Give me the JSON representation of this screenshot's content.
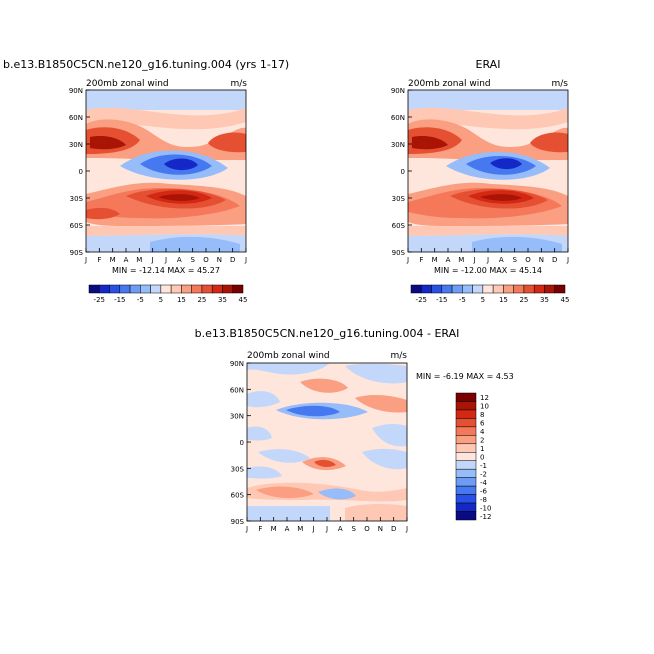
{
  "chart_data": [
    {
      "type": "heatmap",
      "title": "b.e13.B1850C5CN.ne120_g16.tuning.004 (yrs 1-17)",
      "subtitle_left": "200mb zonal wind",
      "subtitle_right": "m/s",
      "xlabel": "",
      "ylabel": "",
      "x_ticks": [
        "J",
        "F",
        "M",
        "A",
        "M",
        "J",
        "J",
        "A",
        "S",
        "O",
        "N",
        "D",
        "J"
      ],
      "y_ticks": [
        "90N",
        "60N",
        "30N",
        "0",
        "30S",
        "60S",
        "90S"
      ],
      "ylim": [
        -90,
        90
      ],
      "stats": "MIN = -12.14  MAX =  45.27",
      "colorbar_ticks": [
        "-25",
        "-15",
        "-5",
        "5",
        "15",
        "25",
        "35",
        "45"
      ],
      "features": [
        {
          "kind": "jet",
          "lat": 30,
          "month": 1.0,
          "peak": 42
        },
        {
          "kind": "jet",
          "lat": 30,
          "month": 12.0,
          "peak": 38
        },
        {
          "kind": "jet",
          "lat": -30,
          "month": 7.5,
          "peak": 45
        },
        {
          "kind": "jet",
          "lat": -45,
          "month": 2.0,
          "peak": 30
        },
        {
          "kind": "easterly",
          "lat": 5,
          "month": 7.5,
          "peak": -12
        }
      ]
    },
    {
      "type": "heatmap",
      "title": "ERAI",
      "subtitle_left": "200mb zonal wind",
      "subtitle_right": "m/s",
      "xlabel": "",
      "ylabel": "",
      "x_ticks": [
        "J",
        "F",
        "M",
        "A",
        "M",
        "J",
        "J",
        "A",
        "S",
        "O",
        "N",
        "D",
        "J"
      ],
      "y_ticks": [
        "90N",
        "60N",
        "30N",
        "0",
        "30S",
        "60S",
        "90S"
      ],
      "ylim": [
        -90,
        90
      ],
      "stats": "MIN = -12.00  MAX =  45.14",
      "colorbar_ticks": [
        "-25",
        "-15",
        "-5",
        "5",
        "15",
        "25",
        "35",
        "45"
      ]
    },
    {
      "type": "heatmap",
      "title": "b.e13.B1850C5CN.ne120_g16.tuning.004 - ERAI",
      "subtitle_left": "200mb zonal wind",
      "subtitle_right": "m/s",
      "xlabel": "",
      "ylabel": "",
      "x_ticks": [
        "J",
        "F",
        "M",
        "A",
        "M",
        "J",
        "J",
        "A",
        "S",
        "O",
        "N",
        "D",
        "J"
      ],
      "y_ticks": [
        "90N",
        "60N",
        "30N",
        "0",
        "30S",
        "60S",
        "90S"
      ],
      "ylim": [
        -90,
        90
      ],
      "stats": "MIN =  -6.19 MAX =   4.53",
      "colorbar_ticks": [
        "12",
        "10",
        "8",
        "6",
        "4",
        "2",
        "1",
        "0",
        "-1",
        "-2",
        "-4",
        "-6",
        "-8",
        "-10",
        "-12"
      ]
    }
  ],
  "colors": {
    "full_scale": [
      "#0a0a82",
      "#1428c8",
      "#2850e6",
      "#4678f0",
      "#6e9bf5",
      "#96bcfa",
      "#c3d7fa",
      "#ffe6dc",
      "#ffc8b4",
      "#fa9f82",
      "#f5785a",
      "#e65032",
      "#d22814",
      "#aa1405",
      "#780000"
    ],
    "diff_scale": [
      "#780000",
      "#aa1405",
      "#d22814",
      "#e65032",
      "#f5785a",
      "#fa9f82",
      "#ffc8b4",
      "#ffe6dc",
      "#c3d7fa",
      "#96bcfa",
      "#6e9bf5",
      "#4678f0",
      "#2850e6",
      "#1428c8",
      "#0a0a82"
    ]
  }
}
